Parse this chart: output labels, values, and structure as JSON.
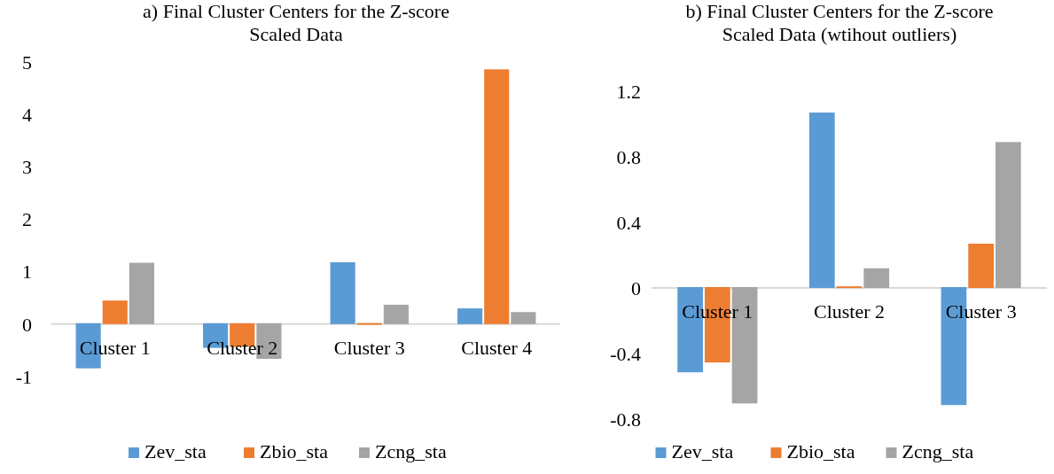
{
  "chart_data": [
    {
      "type": "bar",
      "title": "a) Final Cluster Centers for the Z-score Scaled Data",
      "categories": [
        "Cluster 1",
        "Cluster 2",
        "Cluster 3",
        "Cluster 4"
      ],
      "series": [
        {
          "name": "Zev_sta",
          "color": "#5b9bd5",
          "values": [
            -0.86,
            -0.47,
            1.18,
            0.3
          ]
        },
        {
          "name": "Zbio_sta",
          "color": "#ed7d31",
          "values": [
            0.45,
            -0.45,
            0.02,
            4.86
          ]
        },
        {
          "name": "Zcng_sta",
          "color": "#a5a5a5",
          "values": [
            1.17,
            -0.68,
            0.37,
            0.23
          ]
        }
      ],
      "ylim": [
        -1,
        5
      ],
      "yticks": [
        -1,
        0,
        1,
        2,
        3,
        4,
        5
      ],
      "grid": false,
      "legend": "bottom"
    },
    {
      "type": "bar",
      "title": "b) Final Cluster Centers for the Z-score Scaled Data (wtihout outliers)",
      "categories": [
        "Cluster 1",
        "Cluster 2",
        "Cluster 3"
      ],
      "series": [
        {
          "name": "Zev_sta",
          "color": "#5b9bd5",
          "values": [
            -0.52,
            1.07,
            -0.72
          ]
        },
        {
          "name": "Zbio_sta",
          "color": "#ed7d31",
          "values": [
            -0.46,
            0.01,
            0.27
          ]
        },
        {
          "name": "Zcng_sta",
          "color": "#a5a5a5",
          "values": [
            -0.71,
            0.12,
            0.89
          ]
        }
      ],
      "ylim": [
        -0.8,
        1.2
      ],
      "yticks": [
        -0.8,
        -0.4,
        0,
        0.4,
        0.8,
        1.2
      ],
      "grid": false,
      "legend": "bottom"
    }
  ]
}
